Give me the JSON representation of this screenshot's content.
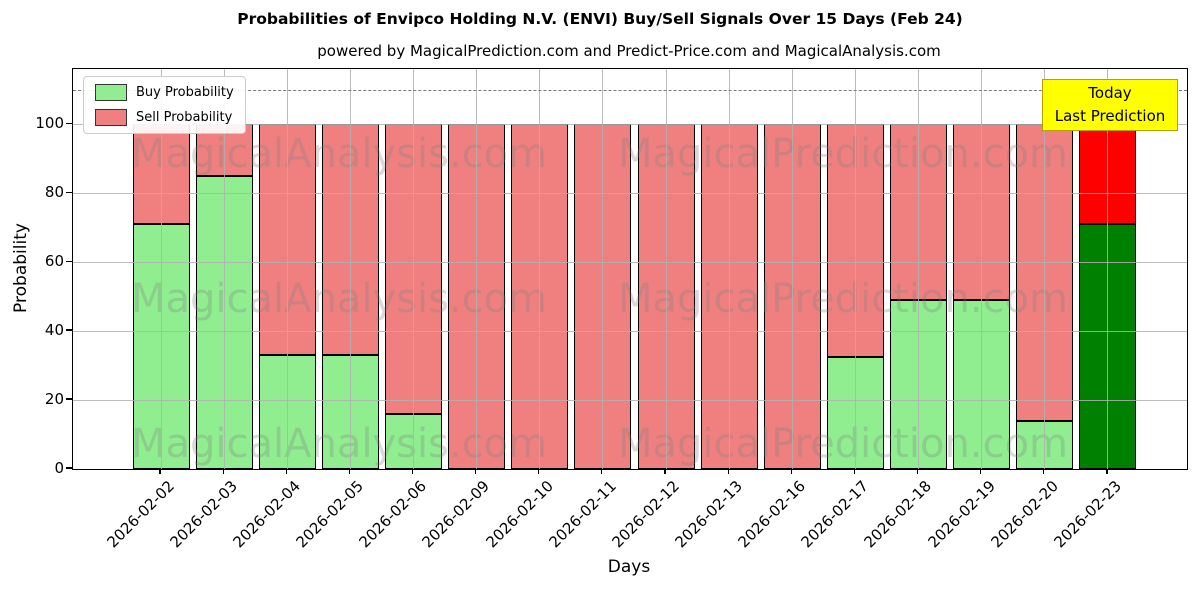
{
  "chart_data": {
    "type": "bar",
    "stacked": true,
    "title": "Probabilities of Envipco Holding N.V. (ENVI) Buy/Sell Signals Over 15 Days (Feb 24)",
    "subtitle": "powered by MagicalPrediction.com and Predict-Price.com and MagicalAnalysis.com",
    "xlabel": "Days",
    "ylabel": "Probability",
    "categories": [
      "2026-02-02",
      "2026-02-03",
      "2026-02-04",
      "2026-02-05",
      "2026-02-06",
      "2026-02-09",
      "2026-02-10",
      "2026-02-11",
      "2026-02-12",
      "2026-02-13",
      "2026-02-16",
      "2026-02-17",
      "2026-02-18",
      "2026-02-19",
      "2026-02-20",
      "2026-02-23"
    ],
    "series": [
      {
        "name": "Buy Probability",
        "color": "#90EE90",
        "today_color": "#008000",
        "values": [
          71,
          85,
          33,
          33,
          16,
          0,
          0,
          0,
          0,
          0,
          0,
          32.5,
          49,
          49,
          14,
          71
        ]
      },
      {
        "name": "Sell Probability",
        "color": "#F08080",
        "today_color": "#FF0000",
        "values": [
          29,
          15,
          67,
          67,
          84,
          100,
          100,
          100,
          100,
          100,
          100,
          67.5,
          51,
          51,
          86,
          29
        ]
      }
    ],
    "yticks": [
      0,
      20,
      40,
      60,
      80,
      100
    ],
    "ylim": [
      0,
      116
    ],
    "dashed_line_y": 110,
    "grid": true,
    "legend_position": "upper left",
    "today_index": 15,
    "annotation": {
      "line1": "Today",
      "line2": "Last Prediction"
    },
    "watermark_left": "MagicalAnalysis.com",
    "watermark_right": "MagicalPrediction.com",
    "colors": {
      "bar_edge": "#000000",
      "grid": "#b0b0b0",
      "dashed_line": "#7a7a7a",
      "annotation_bg": "#ffff00",
      "annotation_border": "#b8a000",
      "watermark": "rgba(128,128,128,0.30)"
    }
  }
}
